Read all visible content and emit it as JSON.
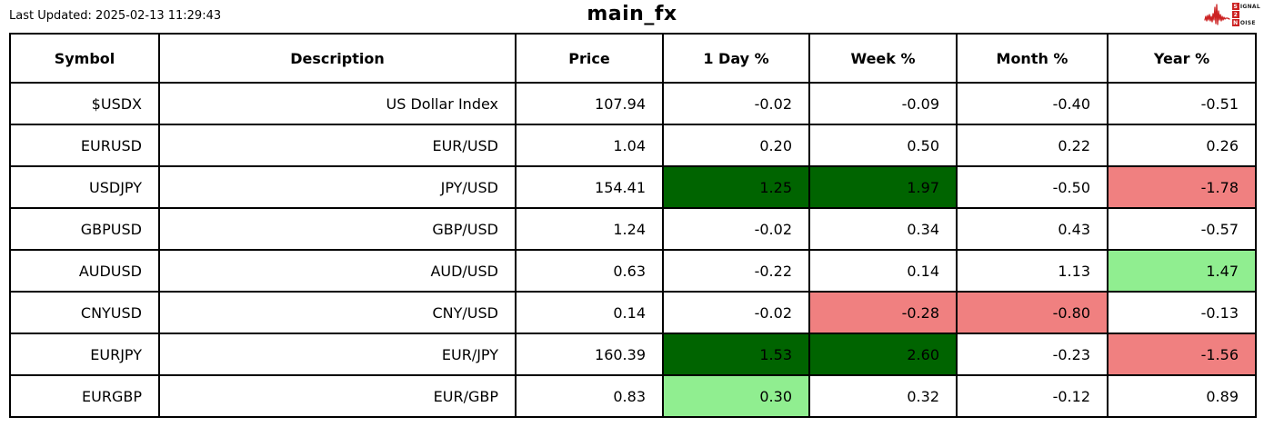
{
  "header": {
    "last_updated": "Last Updated: 2025-02-13 11:29:43",
    "title": "main_fx"
  },
  "logo": {
    "name": "signal-2-noise",
    "s": "S",
    "ignal": "IGNAL",
    "two": "2",
    "n": "N",
    "oise": "OISE"
  },
  "colors": {
    "strong_positive_bg": "#006400",
    "positive_bg": "#90EE90",
    "negative_bg": "#F08080",
    "border": "#000000",
    "logo_red": "#CC2222",
    "background": "#FFFFFF",
    "text": "#000000"
  },
  "chart_data": {
    "type": "table",
    "title": "main_fx",
    "columns": [
      "Symbol",
      "Description",
      "Price",
      "1 Day %",
      "Week %",
      "Month %",
      "Year %"
    ],
    "highlight_states": {
      "strong-up": "dark green cell",
      "up": "light green cell",
      "down": "light red cell",
      "": "white cell"
    },
    "rows": [
      {
        "symbol": "$USDX",
        "description": "US Dollar Index",
        "price": "107.94",
        "cells": [
          {
            "v": "-0.02",
            "state": ""
          },
          {
            "v": "-0.09",
            "state": ""
          },
          {
            "v": "-0.40",
            "state": ""
          },
          {
            "v": "-0.51",
            "state": ""
          }
        ]
      },
      {
        "symbol": "EURUSD",
        "description": "EUR/USD",
        "price": "1.04",
        "cells": [
          {
            "v": "0.20",
            "state": ""
          },
          {
            "v": "0.50",
            "state": ""
          },
          {
            "v": "0.22",
            "state": ""
          },
          {
            "v": "0.26",
            "state": ""
          }
        ]
      },
      {
        "symbol": "USDJPY",
        "description": "JPY/USD",
        "price": "154.41",
        "cells": [
          {
            "v": "1.25",
            "state": "strong-up"
          },
          {
            "v": "1.97",
            "state": "strong-up"
          },
          {
            "v": "-0.50",
            "state": ""
          },
          {
            "v": "-1.78",
            "state": "down"
          }
        ]
      },
      {
        "symbol": "GBPUSD",
        "description": "GBP/USD",
        "price": "1.24",
        "cells": [
          {
            "v": "-0.02",
            "state": ""
          },
          {
            "v": "0.34",
            "state": ""
          },
          {
            "v": "0.43",
            "state": ""
          },
          {
            "v": "-0.57",
            "state": ""
          }
        ]
      },
      {
        "symbol": "AUDUSD",
        "description": "AUD/USD",
        "price": "0.63",
        "cells": [
          {
            "v": "-0.22",
            "state": ""
          },
          {
            "v": "0.14",
            "state": ""
          },
          {
            "v": "1.13",
            "state": ""
          },
          {
            "v": "1.47",
            "state": "up"
          }
        ]
      },
      {
        "symbol": "CNYUSD",
        "description": "CNY/USD",
        "price": "0.14",
        "cells": [
          {
            "v": "-0.02",
            "state": ""
          },
          {
            "v": "-0.28",
            "state": "down"
          },
          {
            "v": "-0.80",
            "state": "down"
          },
          {
            "v": "-0.13",
            "state": ""
          }
        ]
      },
      {
        "symbol": "EURJPY",
        "description": "EUR/JPY",
        "price": "160.39",
        "cells": [
          {
            "v": "1.53",
            "state": "strong-up"
          },
          {
            "v": "2.60",
            "state": "strong-up"
          },
          {
            "v": "-0.23",
            "state": ""
          },
          {
            "v": "-1.56",
            "state": "down"
          }
        ]
      },
      {
        "symbol": "EURGBP",
        "description": "EUR/GBP",
        "price": "0.83",
        "cells": [
          {
            "v": "0.30",
            "state": "up"
          },
          {
            "v": "0.32",
            "state": ""
          },
          {
            "v": "-0.12",
            "state": ""
          },
          {
            "v": "0.89",
            "state": ""
          }
        ]
      }
    ]
  }
}
